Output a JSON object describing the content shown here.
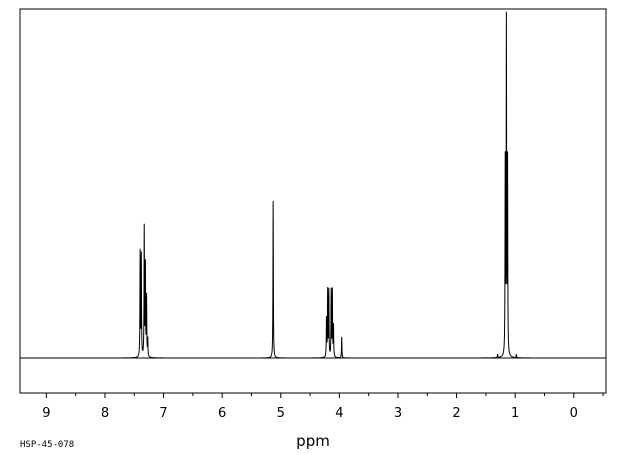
{
  "footer": {
    "spectrum_id": "HSP-45-078"
  },
  "chart_data": {
    "type": "line",
    "title": "",
    "xlabel": "ppm",
    "ylabel": "",
    "x_reversed": true,
    "xlim": [
      9.45,
      -0.55
    ],
    "ylim": [
      0,
      1.0
    ],
    "x_ticks": [
      9,
      8,
      7,
      6,
      5,
      4,
      3,
      2,
      1,
      0
    ],
    "grid": false,
    "line_color": "#000000",
    "peaks": [
      {
        "ppm": 7.4,
        "height": 0.3
      },
      {
        "ppm": 7.38,
        "height": 0.29
      },
      {
        "ppm": 7.33,
        "height": 0.37
      },
      {
        "ppm": 7.31,
        "height": 0.26
      },
      {
        "ppm": 7.29,
        "height": 0.17
      },
      {
        "ppm": 7.27,
        "height": 0.05
      },
      {
        "ppm": 5.13,
        "height": 0.45
      },
      {
        "ppm": 4.22,
        "height": 0.11
      },
      {
        "ppm": 4.2,
        "height": 0.19
      },
      {
        "ppm": 4.18,
        "height": 0.19
      },
      {
        "ppm": 4.14,
        "height": 0.19
      },
      {
        "ppm": 4.12,
        "height": 0.19
      },
      {
        "ppm": 4.1,
        "height": 0.09
      },
      {
        "ppm": 3.96,
        "height": 0.06
      },
      {
        "ppm": 1.17,
        "height": 0.55
      },
      {
        "ppm": 1.15,
        "height": 0.95
      },
      {
        "ppm": 1.13,
        "height": 0.55
      },
      {
        "ppm": 0.98,
        "height": 0.01
      },
      {
        "ppm": 1.3,
        "height": 0.01
      }
    ]
  }
}
